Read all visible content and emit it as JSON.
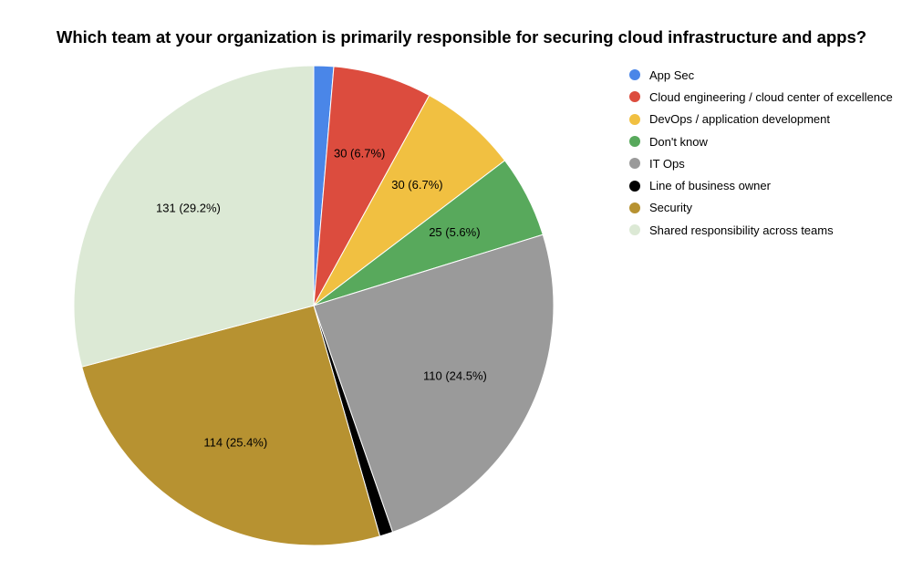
{
  "chart_data": {
    "type": "pie",
    "title": "Which team at your organization is primarily responsible for securing cloud infrastructure and apps?",
    "legend_position": "right",
    "slices": [
      {
        "name": "App Sec",
        "value": 6,
        "percent": 1.3,
        "label": "",
        "color": "#4a86e8"
      },
      {
        "name": "Cloud engineering / cloud center of excellence",
        "value": 30,
        "percent": 6.7,
        "label": "30 (6.7%)",
        "color": "#dc4c3e"
      },
      {
        "name": "DevOps / application development",
        "value": 30,
        "percent": 6.7,
        "label": "30 (6.7%)",
        "color": "#f1c041"
      },
      {
        "name": "Don't know",
        "value": 25,
        "percent": 5.6,
        "label": "25 (5.6%)",
        "color": "#58a95c"
      },
      {
        "name": "IT Ops",
        "value": 110,
        "percent": 24.5,
        "label": "110 (24.5%)",
        "color": "#9a9a9a"
      },
      {
        "name": "Line of business owner",
        "value": 4,
        "percent": 0.9,
        "label": "",
        "color": "#000000"
      },
      {
        "name": "Security",
        "value": 114,
        "percent": 25.4,
        "label": "114 (25.4%)",
        "color": "#b79231"
      },
      {
        "name": "Shared responsibility across teams",
        "value": 131,
        "percent": 29.2,
        "label": "131 (29.2%)",
        "color": "#dce9d5"
      }
    ]
  }
}
